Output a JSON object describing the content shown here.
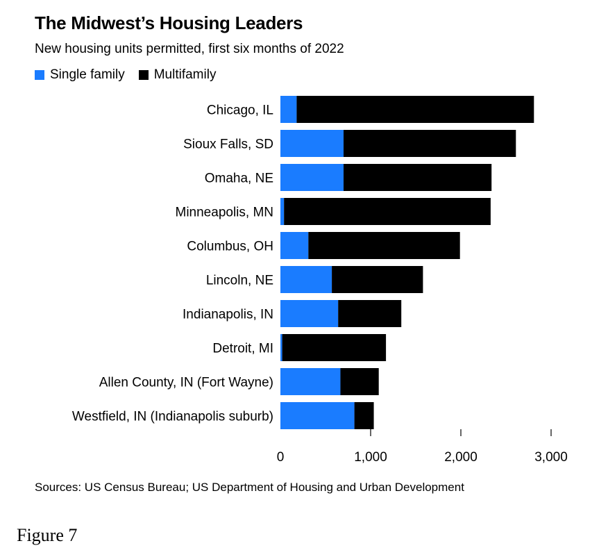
{
  "title": "The Midwest’s Housing Leaders",
  "subtitle": "New housing units permitted, first six months of 2022",
  "source": "Sources: US Census Bureau; US Department of Housing and Urban Development",
  "figure_label": "Figure 7",
  "colors": {
    "single_family": "#1a7cff",
    "multifamily": "#000000"
  },
  "chart_data": {
    "type": "bar",
    "orientation": "horizontal",
    "stacked": true,
    "title": "The Midwest’s Housing Leaders",
    "subtitle": "New housing units permitted, first six months of 2022",
    "categories": [
      "Chicago, IL",
      "Sioux Falls, SD",
      "Omaha, NE",
      "Minneapolis, MN",
      "Columbus, OH",
      "Lincoln, NE",
      "Indianapolis, IN",
      "Detroit, MI",
      "Allen County, IN (Fort Wayne)",
      "Westfield, IN (Indianapolis suburb)"
    ],
    "series": [
      {
        "name": "Single family",
        "values": [
          180,
          700,
          700,
          40,
          310,
          570,
          640,
          20,
          665,
          820
        ]
      },
      {
        "name": "Multifamily",
        "values": [
          2630,
          1910,
          1640,
          2290,
          1680,
          1010,
          700,
          1150,
          425,
          215
        ]
      }
    ],
    "xlim": [
      0,
      3000
    ],
    "xticks": [
      0,
      1000,
      2000,
      3000
    ],
    "xtick_labels": [
      "0",
      "1,000",
      "2,000",
      "3,000"
    ],
    "legend_position": "top-left",
    "grid": false
  }
}
